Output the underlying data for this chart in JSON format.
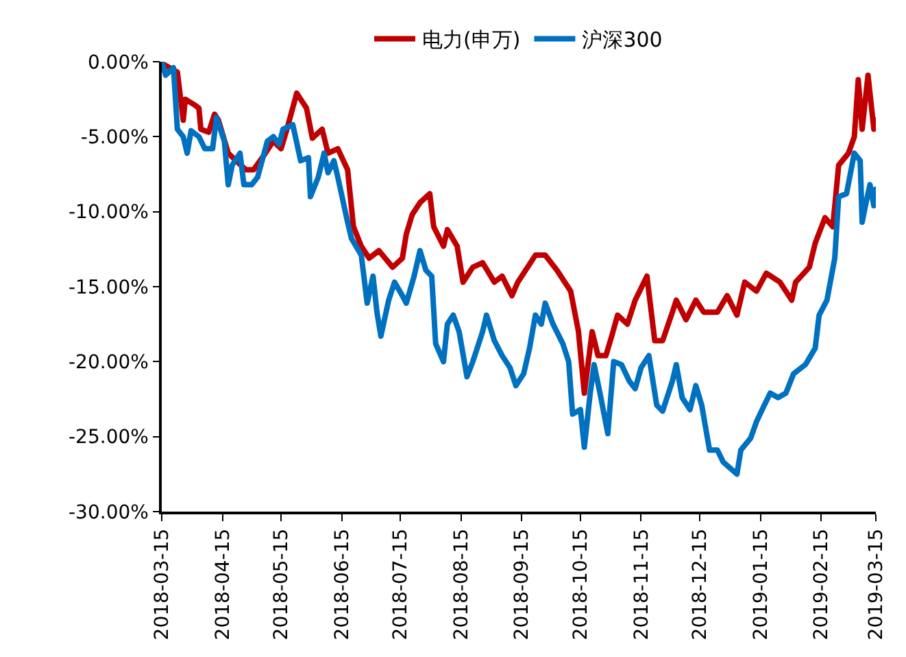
{
  "chart_data": {
    "type": "line",
    "legend": "top",
    "grid": false,
    "line_style": "solid",
    "marker": "none",
    "xlim": [
      "2018-03-15",
      "2019-03-15"
    ],
    "xticks": [
      {
        "value": "2018-03-15",
        "label": "2018-03-15"
      },
      {
        "value": "2018-04-15",
        "label": "2018-04-15"
      },
      {
        "value": "2018-05-15",
        "label": "2018-05-15"
      },
      {
        "value": "2018-06-15",
        "label": "2018-06-15"
      },
      {
        "value": "2018-07-15",
        "label": "2018-07-15"
      },
      {
        "value": "2018-08-15",
        "label": "2018-08-15"
      },
      {
        "value": "2018-09-15",
        "label": "2018-09-15"
      },
      {
        "value": "2018-10-15",
        "label": "2018-10-15"
      },
      {
        "value": "2018-11-15",
        "label": "2018-11-15"
      },
      {
        "value": "2018-12-15",
        "label": "2018-12-15"
      },
      {
        "value": "2019-01-15",
        "label": "2019-01-15"
      },
      {
        "value": "2019-02-15",
        "label": "2019-02-15"
      },
      {
        "value": "2019-03-15",
        "label": "2019-03-15"
      }
    ],
    "ylim": [
      -30,
      0
    ],
    "yticks": [
      {
        "value": 0,
        "label": "0.00%"
      },
      {
        "value": -5,
        "label": "-5.00%"
      },
      {
        "value": -10,
        "label": "-10.00%"
      },
      {
        "value": -15,
        "label": "-15.00%"
      },
      {
        "value": -20,
        "label": "-20.00%"
      },
      {
        "value": -25,
        "label": "-25.00%"
      },
      {
        "value": -30,
        "label": "-30.00%"
      }
    ],
    "series": [
      {
        "name": "电力(申万)",
        "color": "#c00000",
        "x": [
          "2018-03-15",
          "2018-03-23",
          "2018-03-26",
          "2018-03-27",
          "2018-04-01",
          "2018-04-03",
          "2018-04-04",
          "2018-04-08",
          "2018-04-11",
          "2018-04-13",
          "2018-04-18",
          "2018-04-22",
          "2018-04-27",
          "2018-05-01",
          "2018-05-07",
          "2018-05-11",
          "2018-05-15",
          "2018-05-18",
          "2018-05-23",
          "2018-05-28",
          "2018-05-31",
          "2018-06-05",
          "2018-06-08",
          "2018-06-13",
          "2018-06-18",
          "2018-06-21",
          "2018-06-25",
          "2018-06-29",
          "2018-07-04",
          "2018-07-11",
          "2018-07-16",
          "2018-07-18",
          "2018-07-21",
          "2018-07-25",
          "2018-07-30",
          "2018-08-01",
          "2018-08-06",
          "2018-08-08",
          "2018-08-13",
          "2018-08-16",
          "2018-08-21",
          "2018-08-26",
          "2018-09-01",
          "2018-09-05",
          "2018-09-10",
          "2018-09-13",
          "2018-09-18",
          "2018-09-22",
          "2018-09-27",
          "2018-10-03",
          "2018-10-10",
          "2018-10-14",
          "2018-10-17",
          "2018-10-21",
          "2018-10-24",
          "2018-10-28",
          "2018-10-31",
          "2018-11-03",
          "2018-11-08",
          "2018-11-12",
          "2018-11-18",
          "2018-11-22",
          "2018-11-26",
          "2018-12-01",
          "2018-12-03",
          "2018-12-08",
          "2018-12-13",
          "2018-12-17",
          "2018-12-24",
          "2018-12-29",
          "2019-01-03",
          "2019-01-07",
          "2019-01-13",
          "2019-01-18",
          "2019-01-25",
          "2019-01-31",
          "2019-02-02",
          "2019-02-09",
          "2019-02-12",
          "2019-02-17",
          "2019-02-21",
          "2019-02-24",
          "2019-03-01",
          "2019-03-04",
          "2019-03-06",
          "2019-03-08",
          "2019-03-11",
          "2019-03-14",
          "2019-03-15"
        ],
        "values": [
          -0.1,
          -0.7,
          -3.9,
          -2.5,
          -2.9,
          -3.1,
          -4.5,
          -4.7,
          -3.5,
          -3.9,
          -6.1,
          -6.6,
          -7.2,
          -7.2,
          -6.1,
          -5.3,
          -5.8,
          -4.5,
          -2.1,
          -3.1,
          -5.1,
          -4.5,
          -6.1,
          -5.8,
          -7.2,
          -11.0,
          -12.3,
          -13.1,
          -12.6,
          -13.7,
          -13.1,
          -11.5,
          -10.2,
          -9.4,
          -8.8,
          -11.0,
          -12.3,
          -11.2,
          -12.3,
          -14.7,
          -13.7,
          -13.4,
          -14.7,
          -14.3,
          -15.6,
          -14.7,
          -13.7,
          -12.9,
          -12.9,
          -13.9,
          -15.3,
          -18.0,
          -22.1,
          -18.0,
          -19.6,
          -19.6,
          -18.3,
          -16.9,
          -17.5,
          -15.9,
          -14.3,
          -18.6,
          -18.6,
          -16.7,
          -15.9,
          -17.2,
          -15.9,
          -16.7,
          -16.7,
          -15.6,
          -16.9,
          -14.7,
          -15.3,
          -14.1,
          -14.7,
          -15.9,
          -14.7,
          -13.7,
          -12.1,
          -10.4,
          -11.0,
          -6.9,
          -6.1,
          -5.0,
          -1.2,
          -4.5,
          -0.9,
          -4.5,
          -3.9
        ]
      },
      {
        "name": "沪深300",
        "color": "#0070c0",
        "x": [
          "2018-03-15",
          "2018-03-17",
          "2018-03-21",
          "2018-03-23",
          "2018-03-26",
          "2018-03-28",
          "2018-03-30",
          "2018-04-03",
          "2018-04-06",
          "2018-04-10",
          "2018-04-12",
          "2018-04-16",
          "2018-04-18",
          "2018-04-20",
          "2018-04-24",
          "2018-04-26",
          "2018-04-30",
          "2018-05-03",
          "2018-05-08",
          "2018-05-11",
          "2018-05-14",
          "2018-05-16",
          "2018-05-21",
          "2018-05-25",
          "2018-05-29",
          "2018-05-30",
          "2018-06-03",
          "2018-06-06",
          "2018-06-08",
          "2018-06-11",
          "2018-06-13",
          "2018-06-18",
          "2018-06-20",
          "2018-06-25",
          "2018-06-28",
          "2018-07-01",
          "2018-07-03",
          "2018-07-05",
          "2018-07-09",
          "2018-07-12",
          "2018-07-16",
          "2018-07-18",
          "2018-07-22",
          "2018-07-25",
          "2018-07-28",
          "2018-07-31",
          "2018-08-02",
          "2018-08-06",
          "2018-08-08",
          "2018-08-11",
          "2018-08-14",
          "2018-08-18",
          "2018-08-21",
          "2018-08-26",
          "2018-08-28",
          "2018-09-01",
          "2018-09-05",
          "2018-09-09",
          "2018-09-12",
          "2018-09-16",
          "2018-09-19",
          "2018-09-22",
          "2018-09-25",
          "2018-09-27",
          "2018-10-01",
          "2018-10-06",
          "2018-10-09",
          "2018-10-11",
          "2018-10-15",
          "2018-10-17",
          "2018-10-20",
          "2018-10-22",
          "2018-10-25",
          "2018-10-29",
          "2018-11-01",
          "2018-11-05",
          "2018-11-09",
          "2018-11-12",
          "2018-11-15",
          "2018-11-19",
          "2018-11-23",
          "2018-11-26",
          "2018-12-01",
          "2018-12-03",
          "2018-12-06",
          "2018-12-10",
          "2018-12-13",
          "2018-12-16",
          "2018-12-20",
          "2018-12-24",
          "2018-12-27",
          "2019-01-03",
          "2019-01-05",
          "2019-01-10",
          "2019-01-13",
          "2019-01-17",
          "2019-01-20",
          "2019-01-24",
          "2019-01-28",
          "2019-02-01",
          "2019-02-07",
          "2019-02-12",
          "2019-02-14",
          "2019-02-18",
          "2019-02-22",
          "2019-02-24",
          "2019-02-28",
          "2019-03-04",
          "2019-03-07",
          "2019-03-08",
          "2019-03-10",
          "2019-03-12",
          "2019-03-14",
          "2019-03-15"
        ],
        "values": [
          0.0,
          -0.9,
          -0.4,
          -4.5,
          -5.0,
          -6.1,
          -4.6,
          -5.0,
          -5.8,
          -5.8,
          -3.7,
          -5.3,
          -8.2,
          -6.9,
          -6.1,
          -8.2,
          -8.2,
          -7.7,
          -5.3,
          -5.0,
          -5.5,
          -4.5,
          -4.2,
          -6.6,
          -6.4,
          -9.0,
          -7.7,
          -6.1,
          -7.4,
          -6.6,
          -7.7,
          -10.7,
          -11.8,
          -12.9,
          -16.1,
          -14.3,
          -16.7,
          -18.3,
          -15.9,
          -14.7,
          -15.6,
          -16.1,
          -14.3,
          -12.6,
          -13.9,
          -14.3,
          -18.8,
          -20.0,
          -17.5,
          -16.9,
          -18.0,
          -21.0,
          -20.0,
          -18.0,
          -16.9,
          -18.6,
          -19.6,
          -20.4,
          -21.6,
          -20.8,
          -19.1,
          -16.9,
          -17.5,
          -16.1,
          -17.5,
          -18.8,
          -20.0,
          -23.5,
          -23.2,
          -25.7,
          -22.1,
          -20.2,
          -22.1,
          -24.8,
          -20.0,
          -20.2,
          -21.3,
          -21.8,
          -20.4,
          -19.6,
          -22.9,
          -23.3,
          -21.3,
          -20.2,
          -22.4,
          -23.2,
          -21.6,
          -22.9,
          -25.9,
          -25.9,
          -26.7,
          -27.5,
          -25.9,
          -25.1,
          -24.0,
          -22.9,
          -22.1,
          -22.4,
          -22.1,
          -20.8,
          -20.2,
          -19.1,
          -16.9,
          -15.9,
          -13.1,
          -9.0,
          -8.8,
          -6.1,
          -6.6,
          -10.7,
          -9.4,
          -8.2,
          -9.6,
          -8.5
        ]
      }
    ]
  }
}
